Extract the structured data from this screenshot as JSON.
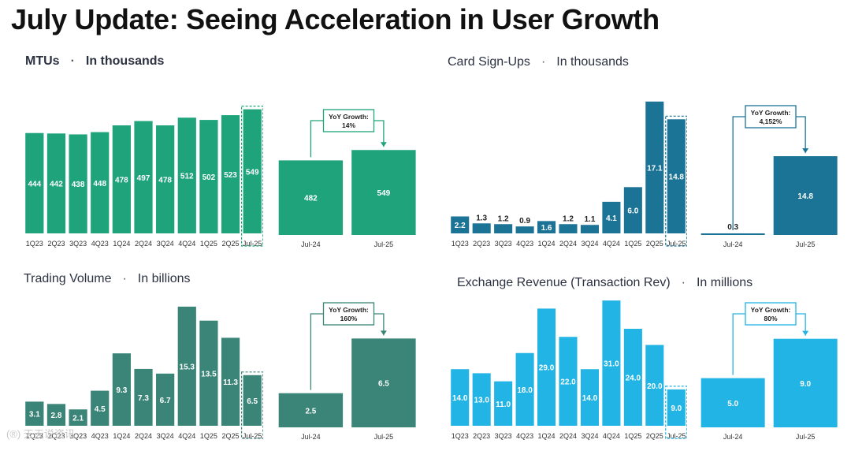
{
  "page_title": "July Update: Seeing Acceleration in User Growth",
  "watermark": "(®) 天天说资讯",
  "chart_data": [
    {
      "id": "mtus",
      "type": "bar",
      "title": "MTUs",
      "unit_label": "In thousands",
      "color": "#1fa37b",
      "categories": [
        "1Q23",
        "2Q23",
        "3Q23",
        "4Q23",
        "1Q24",
        "2Q24",
        "3Q24",
        "4Q24",
        "1Q25",
        "2Q25",
        "Jul-25"
      ],
      "values": [
        444,
        442,
        438,
        448,
        478,
        497,
        478,
        512,
        502,
        523,
        549
      ],
      "value_labels": [
        "444",
        "442",
        "438",
        "448",
        "478",
        "497",
        "478",
        "512",
        "502",
        "523",
        "549"
      ],
      "ylim": [
        0,
        600
      ],
      "highlight_last": true,
      "yoy": {
        "categories": [
          "Jul-24",
          "Jul-25"
        ],
        "values": [
          482,
          549
        ],
        "value_labels": [
          "482",
          "549"
        ],
        "ylim": [
          0,
          800
        ],
        "growth_title": "YoY Growth:",
        "growth_value": "14%"
      }
    },
    {
      "id": "card-signups",
      "type": "bar",
      "title": "Card Sign-Ups",
      "unit_label": "In thousands",
      "color": "#1b7396",
      "categories": [
        "1Q23",
        "2Q23",
        "3Q23",
        "4Q23",
        "1Q24",
        "2Q24",
        "3Q24",
        "4Q24",
        "1Q25",
        "2Q25",
        "Jul-25"
      ],
      "values": [
        2.2,
        1.3,
        1.2,
        0.9,
        1.6,
        1.2,
        1.1,
        4.1,
        6.0,
        17.1,
        14.8
      ],
      "value_labels": [
        "2.2",
        "1.3",
        "1.2",
        "0.9",
        "1.6",
        "1.2",
        "1.1",
        "4.1",
        "6.0",
        "17.1",
        "14.8"
      ],
      "ylim": [
        0,
        18
      ],
      "highlight_last": true,
      "yoy": {
        "categories": [
          "Jul-24",
          "Jul-25"
        ],
        "values": [
          0.3,
          14.8
        ],
        "value_labels": [
          "0.3",
          "14.8"
        ],
        "ylim": [
          0,
          24
        ],
        "growth_title": "YoY Growth:",
        "growth_value": "4,152%"
      }
    },
    {
      "id": "trading-volume",
      "type": "bar",
      "title": "Trading Volume",
      "unit_label": "In billions",
      "color": "#3a8577",
      "categories": [
        "1Q23",
        "2Q23",
        "3Q23",
        "4Q23",
        "1Q24",
        "2Q24",
        "3Q24",
        "4Q24",
        "1Q25",
        "2Q25",
        "Jul-25"
      ],
      "values": [
        3.1,
        2.8,
        2.1,
        4.5,
        9.3,
        7.3,
        6.7,
        15.3,
        13.5,
        11.3,
        6.5
      ],
      "value_labels": [
        "3.1",
        "2.8",
        "2.1",
        "4.5",
        "9.3",
        "7.3",
        "6.7",
        "15.3",
        "13.5",
        "11.3",
        "6.5"
      ],
      "ylim": [
        0,
        16
      ],
      "highlight_last": true,
      "yoy": {
        "categories": [
          "Jul-24",
          "Jul-25"
        ],
        "values": [
          2.5,
          6.5
        ],
        "value_labels": [
          "2.5",
          "6.5"
        ],
        "ylim": [
          0,
          9
        ],
        "growth_title": "YoY Growth:",
        "growth_value": "160%"
      }
    },
    {
      "id": "exchange-revenue",
      "type": "bar",
      "title": "Exchange Revenue (Transaction Rev)",
      "unit_label": "In millions",
      "color": "#21b4e4",
      "categories": [
        "1Q23",
        "2Q23",
        "3Q23",
        "4Q23",
        "1Q24",
        "2Q24",
        "3Q24",
        "4Q24",
        "1Q25",
        "2Q25",
        "Jul-25"
      ],
      "values": [
        14.0,
        13.0,
        11.0,
        18.0,
        29.0,
        22.0,
        14.0,
        31.0,
        24.0,
        20.0,
        9.0
      ],
      "value_labels": [
        "14.0",
        "13.0",
        "11.0",
        "18.0",
        "29.0",
        "22.0",
        "14.0",
        "31.0",
        "24.0",
        "20.0",
        "9.0"
      ],
      "ylim": [
        0,
        32
      ],
      "highlight_last": true,
      "yoy": {
        "categories": [
          "Jul-24",
          "Jul-25"
        ],
        "values": [
          5.0,
          9.0
        ],
        "value_labels": [
          "5.0",
          "9.0"
        ],
        "ylim": [
          0,
          12.5
        ],
        "growth_title": "YoY Growth:",
        "growth_value": "80%"
      }
    }
  ]
}
